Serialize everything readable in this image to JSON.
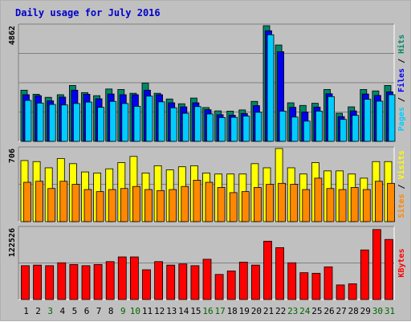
{
  "title": "Daily usage for July 2016",
  "colors": {
    "panel_bg": "#c0c0c0",
    "plot_bg": "#c0c0c0",
    "hits": "#008866",
    "files": "#0000ee",
    "pages": "#00ccff",
    "visits": "#ffff00",
    "sites": "#ff8800",
    "kbytes": "#ff0000",
    "weekend_label": "#006600",
    "weekday_label": "#000000"
  },
  "chart_data": [
    {
      "type": "bar",
      "panel": "hits-files-pages",
      "ymax_label": "4862",
      "ylim": [
        0,
        4862
      ],
      "right_labels": [
        "Pages",
        "Files",
        "Hits"
      ],
      "categories": [
        "1",
        "2",
        "3",
        "4",
        "5",
        "6",
        "7",
        "8",
        "9",
        "10",
        "11",
        "12",
        "13",
        "14",
        "15",
        "16",
        "17",
        "18",
        "19",
        "20",
        "21",
        "22",
        "23",
        "24",
        "25",
        "26",
        "27",
        "28",
        "29",
        "30",
        "31"
      ],
      "series": [
        {
          "name": "Hits",
          "values": [
            2150,
            1980,
            1850,
            1960,
            2350,
            2050,
            1920,
            2200,
            2180,
            2020,
            2450,
            2020,
            1780,
            1580,
            1820,
            1420,
            1280,
            1270,
            1320,
            1680,
            4862,
            4050,
            1620,
            1510,
            1600,
            2180,
            1180,
            1450,
            2180,
            2120,
            2350
          ]
        },
        {
          "name": "Files",
          "values": [
            1960,
            1920,
            1700,
            1860,
            2150,
            1980,
            1790,
            1990,
            1960,
            1960,
            2150,
            1960,
            1620,
            1450,
            1620,
            1330,
            1120,
            1100,
            1170,
            1500,
            4650,
            3770,
            1430,
            1230,
            1440,
            2000,
            1040,
            1280,
            1990,
            1930,
            2080
          ]
        },
        {
          "name": "Pages",
          "values": [
            1720,
            1610,
            1550,
            1530,
            1590,
            1650,
            1430,
            1680,
            1590,
            1470,
            1900,
            1660,
            1410,
            1180,
            1460,
            1150,
            1000,
            1010,
            1060,
            1220,
            4480,
            1270,
            1020,
            850,
            1270,
            1880,
            920,
            1090,
            1770,
            1690,
            1960
          ]
        }
      ]
    },
    {
      "type": "bar",
      "panel": "visits-sites",
      "ymax_label": "706",
      "ylim": [
        0,
        706
      ],
      "right_labels": [
        "Sites",
        "Visits"
      ],
      "categories": [
        "1",
        "2",
        "3",
        "4",
        "5",
        "6",
        "7",
        "8",
        "9",
        "10",
        "11",
        "12",
        "13",
        "14",
        "15",
        "16",
        "17",
        "18",
        "19",
        "20",
        "21",
        "22",
        "23",
        "24",
        "25",
        "26",
        "27",
        "28",
        "29",
        "30",
        "31"
      ],
      "series": [
        {
          "name": "Visits",
          "values": [
            590,
            580,
            520,
            610,
            560,
            480,
            470,
            510,
            570,
            630,
            470,
            540,
            500,
            530,
            540,
            470,
            460,
            460,
            460,
            560,
            520,
            706,
            520,
            460,
            570,
            490,
            490,
            460,
            420,
            580,
            580
          ]
        },
        {
          "name": "Sites",
          "values": [
            380,
            390,
            320,
            390,
            360,
            310,
            290,
            310,
            320,
            340,
            310,
            300,
            310,
            340,
            400,
            380,
            330,
            280,
            290,
            330,
            360,
            370,
            360,
            310,
            420,
            320,
            310,
            330,
            310,
            390,
            370
          ]
        }
      ]
    },
    {
      "type": "bar",
      "panel": "kbytes",
      "ymax_label": "122526",
      "ylim": [
        0,
        122526
      ],
      "right_labels": [
        "KBytes"
      ],
      "categories": [
        "1",
        "2",
        "3",
        "4",
        "5",
        "6",
        "7",
        "8",
        "9",
        "10",
        "11",
        "12",
        "13",
        "14",
        "15",
        "16",
        "17",
        "18",
        "19",
        "20",
        "21",
        "22",
        "23",
        "24",
        "25",
        "26",
        "27",
        "28",
        "29",
        "30",
        "31"
      ],
      "series": [
        {
          "name": "KBytes",
          "values": [
            58000,
            59000,
            58000,
            63000,
            60000,
            58000,
            60000,
            65000,
            73000,
            73000,
            51000,
            65000,
            59000,
            61000,
            58000,
            69000,
            43000,
            49000,
            64000,
            59000,
            100000,
            89000,
            63000,
            46000,
            45000,
            56000,
            25000,
            27000,
            85000,
            120000,
            103000
          ]
        }
      ]
    }
  ],
  "weekend_days": [
    "3",
    "9",
    "10",
    "16",
    "17",
    "23",
    "24",
    "30",
    "31"
  ]
}
